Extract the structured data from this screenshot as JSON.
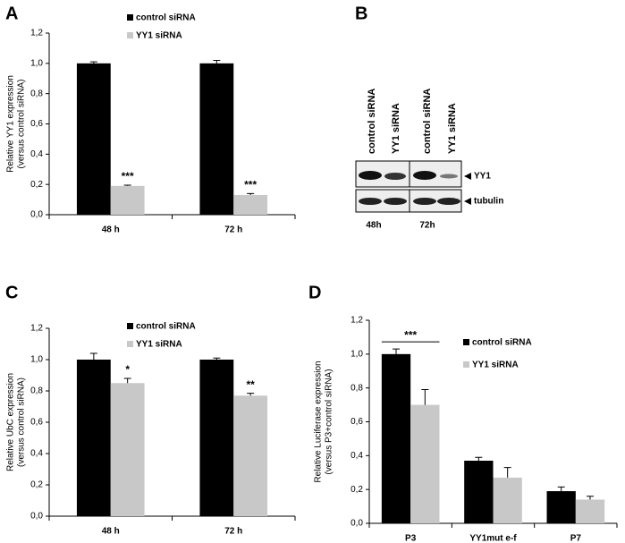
{
  "panel_labels": [
    "A",
    "B",
    "C",
    "D"
  ],
  "blot": {
    "lanes": [
      "control siRNA",
      "YY1 siRNA",
      "control siRNA",
      "YY1 siRNA"
    ],
    "bands": [
      "YY1",
      "tubulin"
    ],
    "times": [
      "48h",
      "72h"
    ]
  },
  "chart_data": [
    {
      "type": "bar",
      "ylabel": [
        "Relative YY1 expression",
        "(versus control siRNA)"
      ],
      "categories": [
        "48 h",
        "72 h"
      ],
      "series": [
        {
          "name": "control siRNA",
          "color": "#000000",
          "values": [
            1.0,
            1.0
          ],
          "errors": [
            0.01,
            0.02
          ]
        },
        {
          "name": "YY1 siRNA",
          "color": "#c8c8c8",
          "values": [
            0.19,
            0.13
          ],
          "errors": [
            0.005,
            0.01
          ],
          "significance": [
            "***",
            "***"
          ]
        }
      ],
      "ylim": [
        0,
        1.2
      ],
      "yticks": [
        {
          "value": 0,
          "label": "0,0"
        },
        {
          "value": 0.2,
          "label": "0,2"
        },
        {
          "value": 0.4,
          "label": "0,4"
        },
        {
          "value": 0.6,
          "label": "0,6"
        },
        {
          "value": 0.8,
          "label": "0,8"
        },
        {
          "value": 1.0,
          "label": "1,0"
        },
        {
          "value": 1.2,
          "label": "1,2"
        }
      ],
      "grid": false
    },
    {
      "type": "bar",
      "ylabel": [
        "Relative UbC expression",
        "(versus control siRNA)"
      ],
      "categories": [
        "48 h",
        "72 h"
      ],
      "series": [
        {
          "name": "control siRNA",
          "color": "#000000",
          "values": [
            1.0,
            1.0
          ],
          "errors": [
            0.04,
            0.01
          ]
        },
        {
          "name": "YY1 siRNA",
          "color": "#c8c8c8",
          "values": [
            0.85,
            0.77
          ],
          "errors": [
            0.03,
            0.015
          ],
          "significance": [
            "*",
            "**"
          ]
        }
      ],
      "ylim": [
        0,
        1.2
      ],
      "yticks": [
        {
          "value": 0,
          "label": "0,0"
        },
        {
          "value": 0.2,
          "label": "0,2"
        },
        {
          "value": 0.4,
          "label": "0,4"
        },
        {
          "value": 0.6,
          "label": "0,6"
        },
        {
          "value": 0.8,
          "label": "0,8"
        },
        {
          "value": 1.0,
          "label": "1,0"
        },
        {
          "value": 1.2,
          "label": "1,2"
        }
      ],
      "grid": false
    },
    {
      "type": "bar",
      "ylabel": [
        "Relative Luciferase expression",
        "(versus P3+control siRNA)"
      ],
      "categories": [
        "P3",
        "YY1mut e-f",
        "P7"
      ],
      "series": [
        {
          "name": "control siRNA",
          "color": "#000000",
          "values": [
            1.0,
            0.37,
            0.19
          ],
          "errors": [
            0.03,
            0.02,
            0.025
          ]
        },
        {
          "name": "YY1 siRNA",
          "color": "#c8c8c8",
          "values": [
            0.7,
            0.27,
            0.14
          ],
          "errors": [
            0.09,
            0.06,
            0.02
          ]
        }
      ],
      "bracket_label": "***",
      "ylim": [
        0,
        1.2
      ],
      "yticks": [
        {
          "value": 0,
          "label": "0,0"
        },
        {
          "value": 0.2,
          "label": "0,2"
        },
        {
          "value": 0.4,
          "label": "0,4"
        },
        {
          "value": 0.6,
          "label": "0,6"
        },
        {
          "value": 0.8,
          "label": "0,8"
        },
        {
          "value": 1.0,
          "label": "1,0"
        },
        {
          "value": 1.2,
          "label": "1,2"
        }
      ],
      "grid": false
    }
  ]
}
